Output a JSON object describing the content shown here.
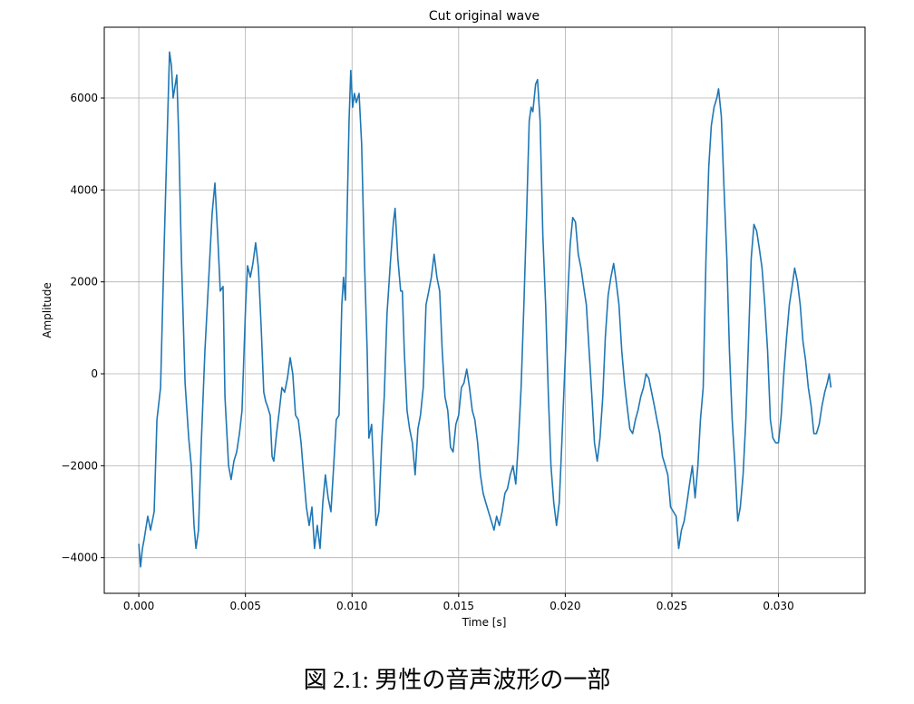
{
  "chart_data": {
    "type": "line",
    "title": "Cut original wave",
    "x_label": "Time [s]",
    "y_label": "Amplitude",
    "grid": true,
    "xlim": [
      -0.00162,
      0.03406
    ],
    "ylim": [
      -4776,
      7540
    ],
    "xticks": [
      {
        "value": 0,
        "label": "0.000"
      },
      {
        "value": 0.005,
        "label": "0.005"
      },
      {
        "value": 0.01,
        "label": "0.010"
      },
      {
        "value": 0.015,
        "label": "0.015"
      },
      {
        "value": 0.02,
        "label": "0.020"
      },
      {
        "value": 0.025,
        "label": "0.025"
      },
      {
        "value": 0.03,
        "label": "0.030"
      }
    ],
    "yticks": [
      {
        "value": -4000,
        "label": "−4000"
      },
      {
        "value": -2000,
        "label": "−2000"
      },
      0,
      2000,
      4000,
      6000
    ],
    "x": [
      0,
      8e-05,
      0.00017,
      0.00025,
      0.00042,
      0.00055,
      0.00072,
      0.00085,
      0.00102,
      0.00119,
      0.00132,
      0.00144,
      0.00153,
      0.00161,
      0.00178,
      0.00187,
      0.002,
      0.00217,
      0.00234,
      0.00246,
      0.00259,
      0.00268,
      0.0028,
      0.00293,
      0.0031,
      0.00327,
      0.00344,
      0.00357,
      0.0037,
      0.00382,
      0.00395,
      0.00404,
      0.00421,
      0.00433,
      0.00446,
      0.00459,
      0.00472,
      0.00484,
      0.00501,
      0.0051,
      0.00523,
      0.00535,
      0.00548,
      0.00561,
      0.00574,
      0.00586,
      0.00595,
      0.00603,
      0.00616,
      0.00625,
      0.00633,
      0.00646,
      0.00659,
      0.00671,
      0.00684,
      0.00697,
      0.0071,
      0.00722,
      0.00735,
      0.00748,
      0.00761,
      0.00773,
      0.00786,
      0.00799,
      0.00812,
      0.00824,
      0.00837,
      0.0085,
      0.00863,
      0.00875,
      0.00888,
      0.00901,
      0.00914,
      0.00926,
      0.00939,
      0.00952,
      0.0096,
      0.00969,
      0.00977,
      0.00986,
      0.00994,
      0.01003,
      0.01011,
      0.0102,
      0.01033,
      0.01045,
      0.01058,
      0.01071,
      0.01079,
      0.01092,
      0.01105,
      0.01113,
      0.01126,
      0.01139,
      0.01151,
      0.01164,
      0.01181,
      0.01194,
      0.01202,
      0.01215,
      0.01228,
      0.01236,
      0.01245,
      0.01258,
      0.0127,
      0.01283,
      0.01296,
      0.01309,
      0.01321,
      0.01334,
      0.01347,
      0.0136,
      0.01372,
      0.01385,
      0.01398,
      0.01411,
      0.01423,
      0.01436,
      0.01449,
      0.01462,
      0.01474,
      0.01487,
      0.015,
      0.01513,
      0.01525,
      0.01538,
      0.01551,
      0.01564,
      0.01576,
      0.01589,
      0.01602,
      0.01615,
      0.01627,
      0.0164,
      0.01653,
      0.01666,
      0.01678,
      0.01691,
      0.01704,
      0.01717,
      0.01729,
      0.01742,
      0.01755,
      0.01768,
      0.0178,
      0.01793,
      0.01806,
      0.01819,
      0.01831,
      0.0184,
      0.01848,
      0.01861,
      0.0187,
      0.01882,
      0.01895,
      0.01908,
      0.01921,
      0.01933,
      0.01946,
      0.01959,
      0.01972,
      0.01984,
      0.01997,
      0.0201,
      0.02023,
      0.02035,
      0.02048,
      0.02061,
      0.02074,
      0.02086,
      0.02099,
      0.02112,
      0.02125,
      0.02137,
      0.0215,
      0.02163,
      0.02176,
      0.02188,
      0.02201,
      0.02214,
      0.02227,
      0.02239,
      0.02252,
      0.02265,
      0.02278,
      0.0229,
      0.02303,
      0.02316,
      0.02329,
      0.02341,
      0.02354,
      0.02367,
      0.02379,
      0.02392,
      0.02405,
      0.02418,
      0.0243,
      0.02443,
      0.02456,
      0.02469,
      0.02481,
      0.02494,
      0.02507,
      0.0252,
      0.02532,
      0.02545,
      0.02558,
      0.02571,
      0.02583,
      0.02596,
      0.02609,
      0.02622,
      0.02634,
      0.02647,
      0.0266,
      0.02673,
      0.02685,
      0.02698,
      0.02711,
      0.02719,
      0.02732,
      0.02745,
      0.02758,
      0.0277,
      0.02783,
      0.02796,
      0.02809,
      0.02821,
      0.02834,
      0.02847,
      0.0286,
      0.02872,
      0.02885,
      0.02898,
      0.02911,
      0.02923,
      0.02936,
      0.02949,
      0.02962,
      0.02974,
      0.02987,
      0.03,
      0.03013,
      0.03025,
      0.03038,
      0.03051,
      0.03064,
      0.03076,
      0.03089,
      0.03102,
      0.03115,
      0.03127,
      0.0314,
      0.03153,
      0.03166,
      0.03178,
      0.03191,
      0.03204,
      0.03217,
      0.03229,
      0.03238,
      0.03246
    ],
    "series": [
      {
        "color": "#1f77b4",
        "values": [
          -3700,
          -4200,
          -3800,
          -3600,
          -3100,
          -3400,
          -3000,
          -1000,
          -300,
          2800,
          5000,
          7000,
          6700,
          6000,
          6500,
          5200,
          2500,
          -200,
          -1400,
          -2000,
          -3300,
          -3800,
          -3400,
          -1500,
          500,
          2000,
          3500,
          4150,
          3000,
          1800,
          1900,
          -500,
          -2000,
          -2300,
          -1900,
          -1700,
          -1300,
          -800,
          1500,
          2350,
          2100,
          2400,
          2850,
          2300,
          1000,
          -400,
          -600,
          -700,
          -900,
          -1800,
          -1900,
          -1300,
          -800,
          -300,
          -400,
          -100,
          350,
          0,
          -900,
          -1000,
          -1500,
          -2200,
          -2900,
          -3300,
          -2900,
          -3800,
          -3300,
          -3800,
          -2800,
          -2200,
          -2700,
          -3000,
          -2000,
          -1000,
          -900,
          1500,
          2100,
          1600,
          3500,
          5500,
          6600,
          5800,
          6100,
          5900,
          6100,
          5000,
          2500,
          500,
          -1400,
          -1100,
          -2500,
          -3300,
          -3000,
          -1500,
          -500,
          1300,
          2500,
          3300,
          3600,
          2500,
          1800,
          1800,
          500,
          -800,
          -1200,
          -1500,
          -2200,
          -1200,
          -900,
          -300,
          1500,
          1800,
          2100,
          2600,
          2100,
          1800,
          500,
          -500,
          -800,
          -1600,
          -1700,
          -1100,
          -900,
          -300,
          -200,
          100,
          -300,
          -800,
          -1000,
          -1500,
          -2200,
          -2600,
          -2800,
          -3000,
          -3200,
          -3400,
          -3100,
          -3300,
          -3000,
          -2600,
          -2500,
          -2200,
          -2000,
          -2400,
          -1500,
          -300,
          1500,
          3500,
          5500,
          5800,
          5700,
          6300,
          6400,
          5500,
          3000,
          1500,
          -500,
          -2000,
          -2800,
          -3300,
          -2800,
          -1500,
          0,
          1500,
          2800,
          3400,
          3300,
          2600,
          2300,
          1900,
          1500,
          500,
          -500,
          -1500,
          -1900,
          -1400,
          -500,
          800,
          1700,
          2100,
          2400,
          2000,
          1500,
          500,
          -200,
          -700,
          -1200,
          -1300,
          -1000,
          -800,
          -500,
          -300,
          0,
          -100,
          -400,
          -700,
          -1000,
          -1300,
          -1800,
          -2000,
          -2200,
          -2900,
          -3000,
          -3100,
          -3800,
          -3400,
          -3200,
          -2800,
          -2400,
          -2000,
          -2700,
          -2000,
          -1000,
          -300,
          2500,
          4500,
          5400,
          5800,
          6000,
          6200,
          5600,
          4000,
          2500,
          500,
          -1000,
          -2000,
          -3200,
          -2900,
          -2200,
          -1000,
          800,
          2500,
          3250,
          3100,
          2700,
          2300,
          1500,
          500,
          -1000,
          -1400,
          -1500,
          -1500,
          -900,
          0,
          800,
          1500,
          1900,
          2300,
          2000,
          1500,
          700,
          300,
          -300,
          -700,
          -1300,
          -1300,
          -1100,
          -700,
          -400,
          -200,
          0,
          -300
        ]
      }
    ]
  },
  "caption": "図 2.1:  男性の音声波形の一部"
}
